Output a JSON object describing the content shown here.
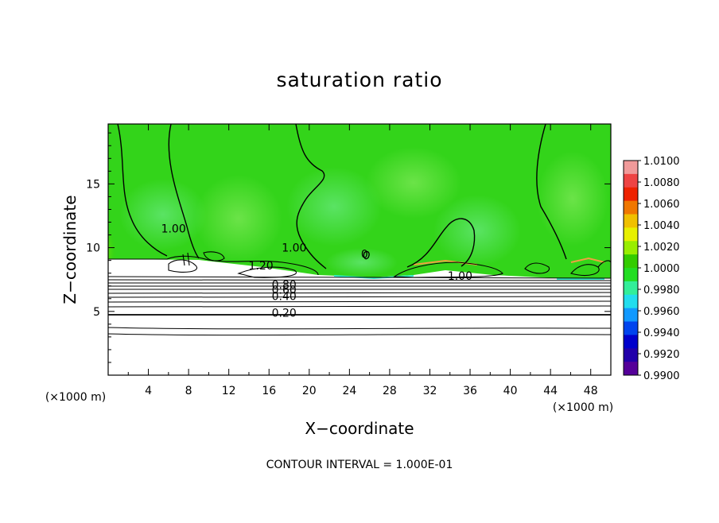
{
  "chart_data": {
    "type": "heatmap",
    "title": "saturation ratio",
    "xlabel": "X−coordinate",
    "ylabel": "Z−coordinate",
    "x_unit_label": "(×1000 m)",
    "y_unit_label": "(×1000 m)",
    "xlim": [
      0,
      50
    ],
    "ylim": [
      0,
      19.7
    ],
    "x_ticks": [
      4,
      8,
      12,
      16,
      20,
      24,
      28,
      32,
      36,
      40,
      44,
      48
    ],
    "y_ticks": [
      5,
      10,
      15
    ],
    "grid": false,
    "colorbar": {
      "position": "right",
      "range": [
        0.99,
        1.01
      ],
      "tick_labels": [
        "1.0100",
        "1.0080",
        "1.0060",
        "1.0040",
        "1.0020",
        "1.0000",
        "0.9980",
        "0.9960",
        "0.9940",
        "0.9920",
        "0.9900"
      ],
      "colors": [
        "#f09a9a",
        "#ee4444",
        "#ee2200",
        "#f07700",
        "#f0c000",
        "#e8f000",
        "#99ee00",
        "#33cc00",
        "#22dd22",
        "#33ee99",
        "#22ddee",
        "#1199ff",
        "#0044ee",
        "#0000cc",
        "#2200aa",
        "#550099"
      ]
    },
    "contour_labels": [
      {
        "text": "1.00",
        "x": 6.5,
        "z": 11.5
      },
      {
        "text": "1.00",
        "x": 18.5,
        "z": 10.0
      },
      {
        "text": "0",
        "x": 25.5,
        "z": 9.5
      },
      {
        "text": "1.20",
        "x": 15.2,
        "z": 8.6
      },
      {
        "text": "1.00",
        "x": 35.0,
        "z": 7.8
      },
      {
        "text": "0.80",
        "x": 17.5,
        "z": 7.1
      },
      {
        "text": "0.60",
        "x": 17.5,
        "z": 6.7
      },
      {
        "text": "0.40",
        "x": 17.5,
        "z": 6.2
      },
      {
        "text": "0.20",
        "x": 17.5,
        "z": 4.9
      }
    ],
    "footer": "CONTOUR INTERVAL =  1.000E-01"
  }
}
